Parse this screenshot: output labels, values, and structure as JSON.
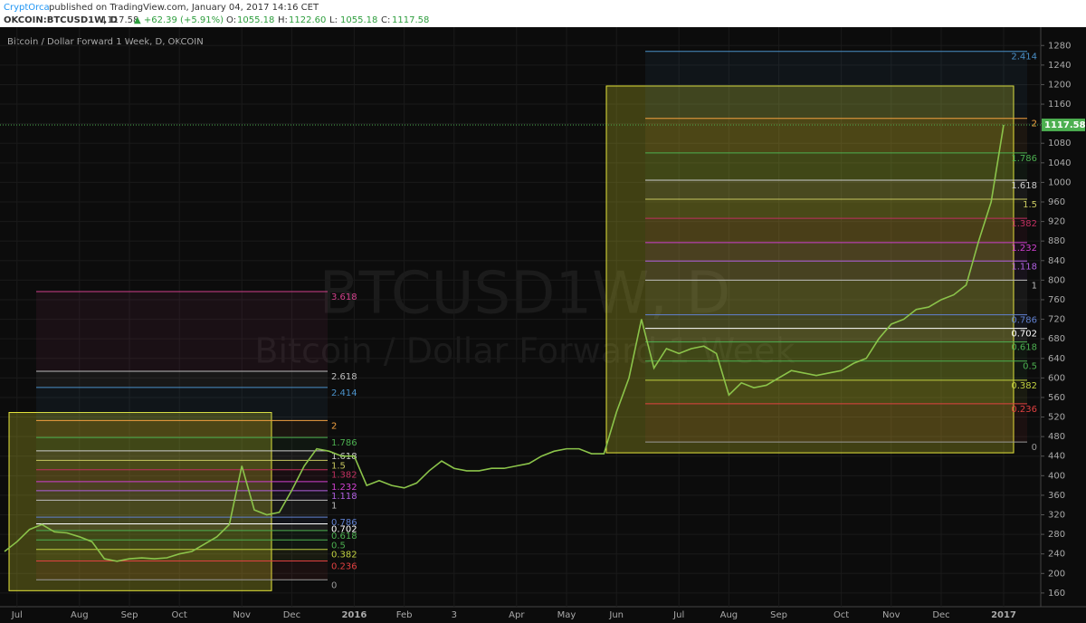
{
  "header": {
    "author": "CryptOrca",
    "published": "published on TradingView.com, January 04, 2017 14:16 CET",
    "symbol": "OKCOIN:BTCUSD1W, D",
    "last": "1117.58",
    "change": "▲ +62.39 (+5.91%)",
    "ohlc": [
      {
        "key": "O:",
        "value": "1055.18"
      },
      {
        "key": "H:",
        "value": "1122.60"
      },
      {
        "key": "L:",
        "value": "1055.18"
      },
      {
        "key": "C:",
        "value": "1117.58"
      }
    ]
  },
  "chart_data": {
    "type": "line",
    "title": "Bitcoin / Dollar Forward 1 Week, D, OKCOIN",
    "watermark": [
      "BTCUSD1W, D",
      "Bitcoin / Dollar Forward 1 Week"
    ],
    "categories": [
      null,
      "Jul",
      null,
      null,
      null,
      null,
      "Aug",
      null,
      null,
      null,
      "Sep",
      null,
      null,
      null,
      "Oct",
      null,
      null,
      null,
      null,
      "Nov",
      null,
      null,
      null,
      "Dec",
      null,
      null,
      null,
      null,
      "2016",
      null,
      null,
      null,
      "Feb",
      null,
      null,
      null,
      "3",
      null,
      null,
      null,
      null,
      "Apr",
      null,
      null,
      null,
      "May",
      null,
      null,
      null,
      "Jun",
      null,
      null,
      null,
      null,
      "Jul",
      null,
      null,
      null,
      "Aug",
      null,
      null,
      null,
      "Sep",
      null,
      null,
      null,
      null,
      "Oct",
      null,
      null,
      null,
      "Nov",
      null,
      null,
      null,
      "Dec",
      null,
      null,
      null,
      null,
      "2017"
    ],
    "series": [
      {
        "name": "BTCUSD1W",
        "color": "#8bc34a",
        "values": [
          245,
          265,
          290,
          300,
          285,
          283,
          275,
          265,
          230,
          225,
          230,
          232,
          230,
          232,
          240,
          245,
          260,
          275,
          300,
          420,
          330,
          320,
          325,
          370,
          420,
          455,
          450,
          440,
          440,
          380,
          390,
          380,
          375,
          385,
          410,
          430,
          415,
          410,
          410,
          415,
          415,
          420,
          425,
          440,
          450,
          455,
          455,
          445,
          445,
          530,
          600,
          720,
          620,
          660,
          650,
          660,
          665,
          650,
          565,
          590,
          580,
          585,
          600,
          615,
          610,
          605,
          610,
          615,
          630,
          640,
          680,
          710,
          720,
          740,
          745,
          760,
          770,
          790,
          880,
          960,
          1117.58
        ]
      }
    ],
    "last_price": 1117.58,
    "ylim": [
      132,
      1299
    ],
    "yticks": [
      160,
      200,
      240,
      280,
      320,
      360,
      400,
      440,
      480,
      520,
      560,
      600,
      640,
      680,
      720,
      760,
      800,
      840,
      880,
      920,
      960,
      1000,
      1040,
      1080,
      1120,
      1160,
      1200,
      1240,
      1280
    ],
    "grid": true,
    "fibs": [
      {
        "start": 187,
        "end": 350,
        "levels": [
          {
            "ratio": 3.618,
            "color": "#d0408a"
          },
          {
            "ratio": 2.618,
            "color": "#bbbbbb"
          },
          {
            "ratio": 2.414,
            "color": "#4a90c8"
          },
          {
            "ratio": 2,
            "color": "#f0a040"
          },
          {
            "ratio": 1.786,
            "color": "#4caf50"
          },
          {
            "ratio": 1.618,
            "color": "#cccccc"
          },
          {
            "ratio": 1.5,
            "color": "#c8c860"
          },
          {
            "ratio": 1.382,
            "color": "#c03060"
          },
          {
            "ratio": 1.232,
            "color": "#d040d0"
          },
          {
            "ratio": 1.118,
            "color": "#b060e0"
          },
          {
            "ratio": 1,
            "color": "#bbbbbb"
          },
          {
            "ratio": 0.786,
            "color": "#6080d0"
          },
          {
            "ratio": 0.702,
            "color": "#ffffff"
          },
          {
            "ratio": 0.618,
            "color": "#4caf50"
          },
          {
            "ratio": 0.5,
            "color": "#4caf50"
          },
          {
            "ratio": 0.382,
            "color": "#c0d040"
          },
          {
            "ratio": 0.236,
            "color": "#e04040"
          },
          {
            "ratio": 0,
            "color": "#999999"
          }
        ]
      },
      {
        "start": 469,
        "end": 800,
        "levels": [
          {
            "ratio": 2.414,
            "color": "#4a90c8"
          },
          {
            "ratio": 2,
            "color": "#f0a040"
          },
          {
            "ratio": 1.786,
            "color": "#4caf50"
          },
          {
            "ratio": 1.618,
            "color": "#cccccc"
          },
          {
            "ratio": 1.5,
            "color": "#c8c860"
          },
          {
            "ratio": 1.382,
            "color": "#c03060"
          },
          {
            "ratio": 1.232,
            "color": "#d040d0"
          },
          {
            "ratio": 1.118,
            "color": "#b060e0"
          },
          {
            "ratio": 1,
            "color": "#bbbbbb"
          },
          {
            "ratio": 0.786,
            "color": "#6080d0"
          },
          {
            "ratio": 0.702,
            "color": "#ffffff"
          },
          {
            "ratio": 0.618,
            "color": "#4caf50"
          },
          {
            "ratio": 0.5,
            "color": "#4caf50"
          },
          {
            "ratio": 0.382,
            "color": "#c0d040"
          },
          {
            "ratio": 0.236,
            "color": "#e04040"
          },
          {
            "ratio": 0,
            "color": "#999999"
          }
        ]
      }
    ]
  }
}
